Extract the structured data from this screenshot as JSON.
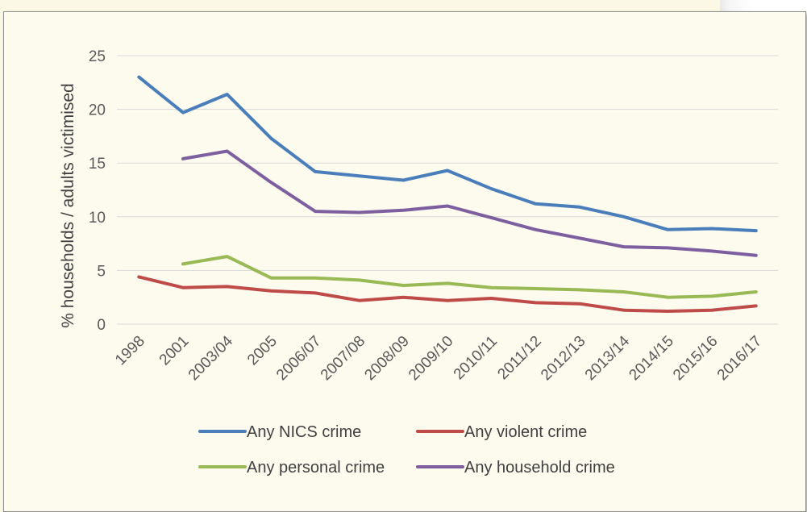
{
  "chart_data": {
    "type": "line",
    "ylabel": "% households / adults victimised",
    "xlabel": "",
    "ylim": [
      0,
      25
    ],
    "yticks": [
      0,
      5,
      10,
      15,
      20,
      25
    ],
    "grid": true,
    "legend_position": "bottom",
    "categories": [
      "1998",
      "2001",
      "2003/04",
      "2005",
      "2006/07",
      "2007/08",
      "2008/09",
      "2009/10",
      "2010/11",
      "2011/12",
      "2012/13",
      "2013/14",
      "2014/15",
      "2015/16",
      "2016/17"
    ],
    "series": [
      {
        "name": "Any NICS crime",
        "color": "#4a7ebb",
        "values": [
          23.0,
          19.7,
          21.4,
          17.3,
          14.2,
          13.8,
          13.4,
          14.3,
          12.6,
          11.2,
          10.9,
          10.0,
          8.8,
          8.9,
          8.7
        ]
      },
      {
        "name": "Any violent crime",
        "color": "#be4b48",
        "values": [
          4.4,
          3.4,
          3.5,
          3.1,
          2.9,
          2.2,
          2.5,
          2.2,
          2.4,
          2.0,
          1.9,
          1.3,
          1.2,
          1.3,
          1.7
        ]
      },
      {
        "name": "Any personal crime",
        "color": "#98b954",
        "values": [
          null,
          5.6,
          6.3,
          4.3,
          4.3,
          4.1,
          3.6,
          3.8,
          3.4,
          3.3,
          3.2,
          3.0,
          2.5,
          2.6,
          3.0
        ]
      },
      {
        "name": "Any household crime",
        "color": "#7d5fa0",
        "values": [
          null,
          15.4,
          16.1,
          13.2,
          10.5,
          10.4,
          10.6,
          11.0,
          9.9,
          8.8,
          8.0,
          7.2,
          7.1,
          6.8,
          6.4
        ]
      }
    ]
  }
}
